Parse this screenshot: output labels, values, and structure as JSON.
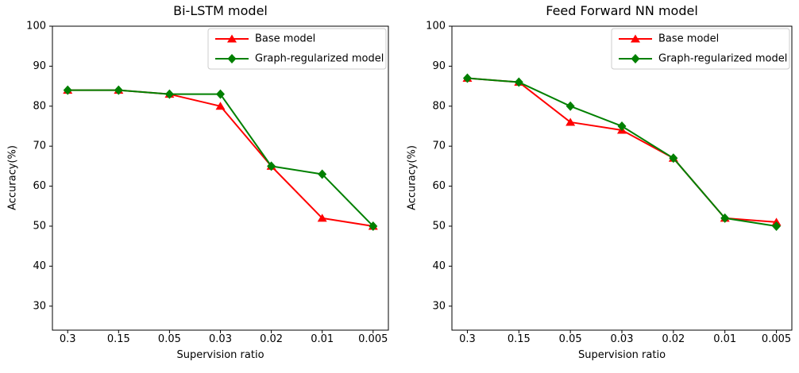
{
  "figure": {
    "background": "#ffffff",
    "text_color": "#000000",
    "axis_color": "#000000"
  },
  "chart_data": [
    {
      "type": "line",
      "title": "Bi-LSTM model",
      "xlabel": "Supervision ratio",
      "ylabel": "Accuracy(%)",
      "x_type": "categorical",
      "categories": [
        "0.3",
        "0.15",
        "0.05",
        "0.03",
        "0.02",
        "0.01",
        "0.005"
      ],
      "yticks": [
        30,
        40,
        50,
        60,
        70,
        80,
        90,
        100
      ],
      "ylim": [
        24,
        100
      ],
      "grid": false,
      "legend": {
        "position": "upper right",
        "border_color": "#cccccc",
        "background": "#ffffff"
      },
      "series": [
        {
          "name": "Base model",
          "color": "#ff0000",
          "marker": "triangle",
          "values": [
            84,
            84,
            83,
            80,
            65,
            52,
            50
          ]
        },
        {
          "name": "Graph-regularized model",
          "color": "#008000",
          "marker": "diamond",
          "values": [
            84,
            84,
            83,
            83,
            65,
            63,
            50
          ]
        }
      ]
    },
    {
      "type": "line",
      "title": "Feed Forward NN model",
      "xlabel": "Supervision ratio",
      "ylabel": "Accuracy(%)",
      "x_type": "categorical",
      "categories": [
        "0.3",
        "0.15",
        "0.05",
        "0.03",
        "0.02",
        "0.01",
        "0.005"
      ],
      "yticks": [
        30,
        40,
        50,
        60,
        70,
        80,
        90,
        100
      ],
      "ylim": [
        24,
        100
      ],
      "grid": false,
      "legend": {
        "position": "upper right",
        "border_color": "#cccccc",
        "background": "#ffffff"
      },
      "series": [
        {
          "name": "Base model",
          "color": "#ff0000",
          "marker": "triangle",
          "values": [
            87,
            86,
            76,
            74,
            67,
            52,
            51
          ]
        },
        {
          "name": "Graph-regularized model",
          "color": "#008000",
          "marker": "diamond",
          "values": [
            87,
            86,
            80,
            75,
            67,
            52,
            50
          ]
        }
      ]
    }
  ]
}
